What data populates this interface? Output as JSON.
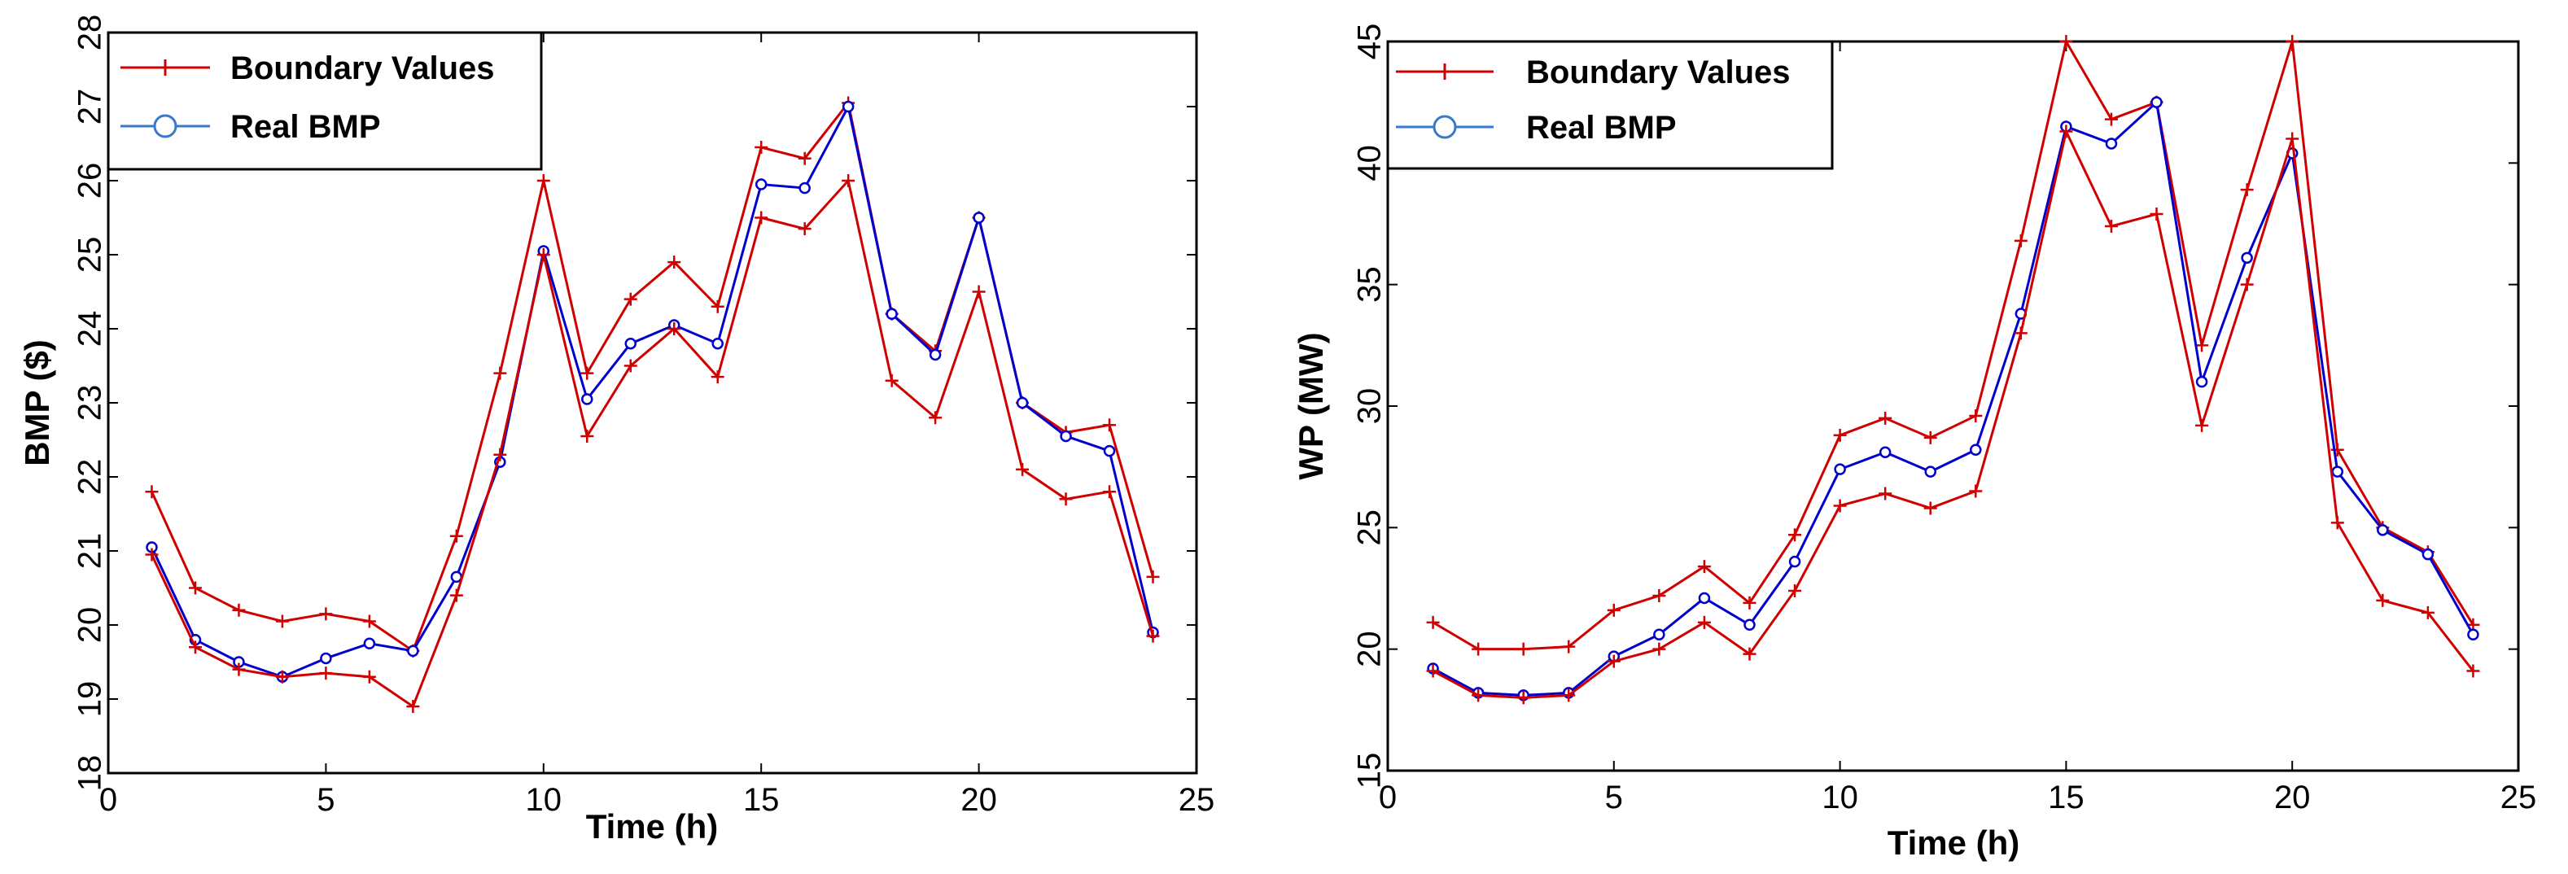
{
  "chart_data": [
    {
      "type": "line",
      "xlabel": "Time (h)",
      "ylabel": "BMP ($)",
      "xlim": [
        0,
        25
      ],
      "ylim": [
        18,
        28
      ],
      "xticks": [
        0,
        5,
        10,
        15,
        20,
        25
      ],
      "yticks": [
        18,
        19,
        20,
        21,
        22,
        23,
        24,
        25,
        26,
        27,
        28
      ],
      "x": [
        1,
        2,
        3,
        4,
        5,
        6,
        7,
        8,
        9,
        10,
        11,
        12,
        13,
        14,
        15,
        16,
        17,
        18,
        19,
        20,
        21,
        22,
        23,
        24
      ],
      "legend": [
        "Boundary Values",
        "Real BMP"
      ],
      "legend_position": "top-left",
      "series": [
        {
          "name": "Boundary Values",
          "role": "upper",
          "color": "#d00000",
          "marker": "plus",
          "values": [
            21.8,
            20.5,
            20.2,
            20.05,
            20.15,
            20.05,
            19.65,
            21.2,
            23.4,
            26.0,
            23.4,
            24.4,
            24.9,
            24.3,
            26.45,
            26.3,
            27.05,
            24.2,
            23.7,
            25.5,
            23.0,
            22.6,
            22.7,
            20.65
          ]
        },
        {
          "name": "Real BMP",
          "role": "real",
          "color": "#0000cc",
          "marker": "circle",
          "values": [
            21.05,
            19.8,
            19.5,
            19.3,
            19.55,
            19.75,
            19.65,
            20.65,
            22.2,
            25.05,
            23.05,
            23.8,
            24.05,
            23.8,
            25.95,
            25.9,
            27.0,
            24.2,
            23.65,
            25.5,
            23.0,
            22.55,
            22.35,
            19.9
          ]
        },
        {
          "name": "Boundary Values",
          "role": "lower",
          "color": "#d00000",
          "marker": "plus",
          "values": [
            20.95,
            19.7,
            19.4,
            19.3,
            19.35,
            19.3,
            18.9,
            20.4,
            22.3,
            25.0,
            22.55,
            23.5,
            24.0,
            23.35,
            25.5,
            25.35,
            26.0,
            23.3,
            22.8,
            24.5,
            22.1,
            21.7,
            21.8,
            19.85
          ]
        }
      ]
    },
    {
      "type": "line",
      "xlabel": "Time (h)",
      "ylabel": "WP (MW)",
      "xlim": [
        0,
        25
      ],
      "ylim": [
        15,
        45
      ],
      "xticks": [
        0,
        5,
        10,
        15,
        20,
        25
      ],
      "yticks": [
        15,
        20,
        25,
        30,
        35,
        40,
        45
      ],
      "x": [
        1,
        2,
        3,
        4,
        5,
        6,
        7,
        8,
        9,
        10,
        11,
        12,
        13,
        14,
        15,
        16,
        17,
        18,
        19,
        20,
        21,
        22,
        23,
        24
      ],
      "legend": [
        "Boundary Values",
        "Real BMP"
      ],
      "legend_position": "top-left",
      "series": [
        {
          "name": "Boundary Values",
          "role": "upper",
          "color": "#d00000",
          "marker": "plus",
          "values": [
            21.1,
            20.0,
            20.0,
            20.1,
            21.6,
            22.2,
            23.4,
            21.9,
            24.7,
            28.8,
            29.5,
            28.7,
            29.6,
            36.8,
            45.0,
            41.8,
            42.5,
            32.5,
            38.9,
            45.0,
            28.2,
            25.0,
            24.0,
            21.0
          ]
        },
        {
          "name": "Real BMP",
          "role": "real",
          "color": "#0000cc",
          "marker": "circle",
          "values": [
            19.2,
            18.2,
            18.1,
            18.2,
            19.7,
            20.6,
            22.1,
            21.0,
            23.6,
            27.4,
            28.1,
            27.3,
            28.2,
            33.8,
            41.5,
            40.8,
            42.5,
            31.0,
            36.1,
            40.4,
            27.3,
            24.9,
            23.9,
            20.6
          ]
        },
        {
          "name": "Boundary Values",
          "role": "lower",
          "color": "#d00000",
          "marker": "plus",
          "values": [
            19.1,
            18.1,
            18.0,
            18.1,
            19.5,
            20.0,
            21.1,
            19.8,
            22.4,
            25.9,
            26.4,
            25.8,
            26.5,
            33.0,
            41.3,
            37.4,
            37.9,
            29.2,
            35.0,
            41.0,
            25.2,
            22.0,
            21.5,
            19.1
          ]
        }
      ]
    }
  ]
}
